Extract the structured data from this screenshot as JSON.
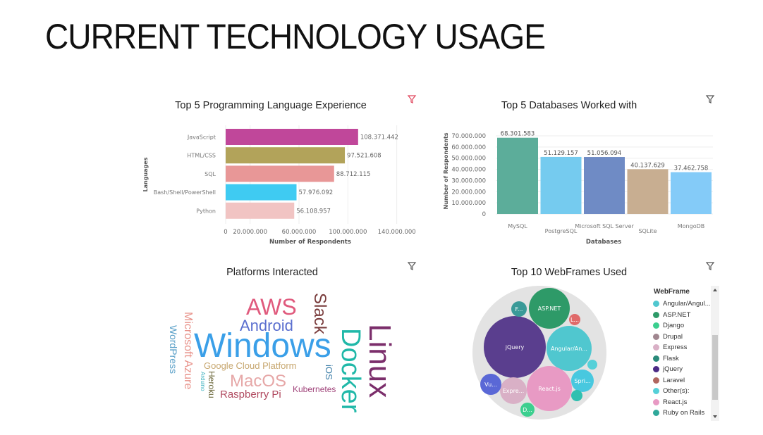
{
  "page": {
    "title": "CURRENT TECHNOLOGY USAGE"
  },
  "colors": {
    "filter_active": "#e0455c",
    "filter_inactive": "#555555"
  },
  "icons": {
    "filter": "filter-icon"
  },
  "chart_data": [
    {
      "type": "bar",
      "orientation": "horizontal",
      "title": "Top 5 Programming Language Experience",
      "xlabel": "Number of Respondents",
      "ylabel": "Languages",
      "categories": [
        "JavaScript",
        "HTML/CSS",
        "SQL",
        "Bash/Shell/PowerShell",
        "Python"
      ],
      "values": [
        108371442,
        97521608,
        88712115,
        57976092,
        56108957
      ],
      "value_labels": [
        "108.371.442",
        "97.521.608",
        "88.712.115",
        "57.976.092",
        "56.108.957"
      ],
      "colors": [
        "#c0479a",
        "#b2a35a",
        "#e89797",
        "#3fcbf2",
        "#f1c4c3"
      ],
      "xlim": [
        0,
        150000000
      ],
      "xticks": [
        0,
        20000000,
        60000000,
        100000000,
        140000000
      ],
      "xtick_labels": [
        "0",
        "20.000.000",
        "60.000.000",
        "100.000.000",
        "140.000.000"
      ]
    },
    {
      "type": "bar",
      "title": "Top 5 Databases Worked with",
      "xlabel": "Databases",
      "ylabel": "Number of Respondents",
      "categories": [
        "MySQL",
        "PostgreSQL",
        "Microsoft SQL Server",
        "SQLite",
        "MongoDB"
      ],
      "values": [
        68301583,
        51129157,
        51056094,
        40137629,
        37462758
      ],
      "value_labels": [
        "68.301.583",
        "51.129.157",
        "51.056.094",
        "40.137.629",
        "37.462.758"
      ],
      "colors": [
        "#5cad9a",
        "#75cbef",
        "#6f8bc5",
        "#c8ae91",
        "#84cbf8"
      ],
      "ylim": [
        0,
        70000000
      ],
      "yticks": [
        0,
        10000000,
        20000000,
        30000000,
        40000000,
        50000000,
        60000000,
        70000000
      ],
      "ytick_labels": [
        "0",
        "10.000.000",
        "20.000.000",
        "30.000.000",
        "40.000.000",
        "50.000.000",
        "60.000.000",
        "70.000.000"
      ]
    },
    {
      "type": "wordcloud",
      "title": "Platforms Interacted",
      "words": [
        {
          "text": "Windows",
          "color": "#3a9fe8"
        },
        {
          "text": "Linux",
          "color": "#7b2e6b"
        },
        {
          "text": "Docker",
          "color": "#20b8a8"
        },
        {
          "text": "AWS",
          "color": "#e05a7d"
        },
        {
          "text": "Android",
          "color": "#5b6fcf"
        },
        {
          "text": "Slack",
          "color": "#7a3d3d"
        },
        {
          "text": "MacOS",
          "color": "#e6a7a7"
        },
        {
          "text": "Google Cloud Platform",
          "color": "#c7a76f"
        },
        {
          "text": "Raspberry Pi",
          "color": "#b0495f"
        },
        {
          "text": "Microsoft Azure",
          "color": "#e8928a"
        },
        {
          "text": "WordPress",
          "color": "#5aa0c8"
        },
        {
          "text": "Kubernetes",
          "color": "#a1467c"
        },
        {
          "text": "Heroku",
          "color": "#6e6a3e"
        },
        {
          "text": "iOS",
          "color": "#3f7fa8"
        },
        {
          "text": "Arduino",
          "color": "#3fb2c0"
        }
      ]
    },
    {
      "type": "bubble",
      "title": "Top 10 WebFrames Used",
      "legend_title": "WebFrame",
      "bubbles": [
        {
          "label": "jQuery",
          "color": "#5a3e8e"
        },
        {
          "label": "ASP.NET",
          "color": "#2e9a68"
        },
        {
          "label": "Angular/An...",
          "color": "#50c7cf"
        },
        {
          "label": "React.js",
          "color": "#e89ac4"
        },
        {
          "label": "Spri...",
          "color": "#48c8df"
        },
        {
          "label": "Expre...",
          "color": "#d9b0c6"
        },
        {
          "label": "Vu...",
          "color": "#5a68d6"
        },
        {
          "label": "F...",
          "color": "#3a9a98"
        },
        {
          "label": "L...",
          "color": "#e06a6a"
        },
        {
          "label": "D...",
          "color": "#3ccf8f"
        },
        {
          "label": "",
          "color": "#55d0d8"
        },
        {
          "label": "",
          "color": "#30c0b0"
        }
      ],
      "legend": [
        {
          "label": "Angular/Angul...",
          "color": "#50c7cf"
        },
        {
          "label": "ASP.NET",
          "color": "#2e9a68"
        },
        {
          "label": "Django",
          "color": "#3ccf8f"
        },
        {
          "label": "Drupal",
          "color": "#a0868f"
        },
        {
          "label": "Express",
          "color": "#d9b0c6"
        },
        {
          "label": "Flask",
          "color": "#2a8a7a"
        },
        {
          "label": "jQuery",
          "color": "#4b2a85"
        },
        {
          "label": "Laravel",
          "color": "#b0665f"
        },
        {
          "label": "Other(s):",
          "color": "#55d0d8"
        },
        {
          "label": "React.js",
          "color": "#e89ac4"
        },
        {
          "label": "Ruby on Rails",
          "color": "#2fa89a"
        }
      ]
    }
  ]
}
